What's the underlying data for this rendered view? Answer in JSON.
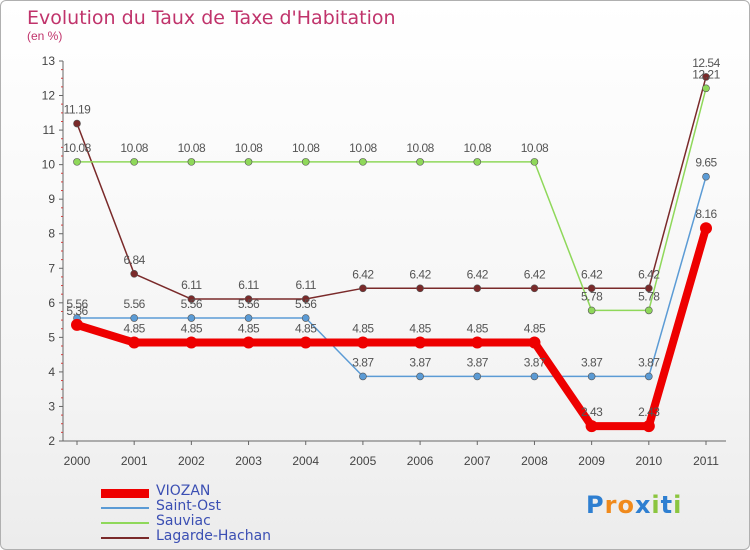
{
  "chart_data": {
    "type": "line",
    "title": "Evolution du Taux de Taxe d'Habitation",
    "subtitle": "(en %)",
    "x": [
      "2000",
      "2001",
      "2002",
      "2003",
      "2004",
      "2005",
      "2006",
      "2007",
      "2008",
      "2009",
      "2010",
      "2011"
    ],
    "ylim": [
      2,
      13
    ],
    "yticks": [
      "2",
      "3",
      "4",
      "5",
      "6",
      "7",
      "8",
      "9",
      "10",
      "11",
      "12",
      "13"
    ],
    "grid": false,
    "legend_position": "bottom-left",
    "series": [
      {
        "name": "VIOZAN",
        "color": "#ee0000",
        "values": [
          5.36,
          4.85,
          4.85,
          4.85,
          4.85,
          4.85,
          4.85,
          4.85,
          4.85,
          2.43,
          2.43,
          8.16
        ],
        "labels": [
          "5.36",
          "4.85",
          "4.85",
          "4.85",
          "4.85",
          "4.85",
          "4.85",
          "4.85",
          "4.85",
          "2.43",
          "2.43",
          "8.16"
        ]
      },
      {
        "name": "Saint-Ost",
        "color": "#5b9bd5",
        "values": [
          5.56,
          5.56,
          5.56,
          5.56,
          5.56,
          3.87,
          3.87,
          3.87,
          3.87,
          3.87,
          3.87,
          9.65
        ],
        "labels": [
          "5.56",
          "5.56",
          "5.56",
          "5.56",
          "5.56",
          "3.87",
          "3.87",
          "3.87",
          "3.87",
          "3.87",
          "3.87",
          "9.65"
        ]
      },
      {
        "name": "Sauviac",
        "color": "#8fd85a",
        "values": [
          10.08,
          10.08,
          10.08,
          10.08,
          10.08,
          10.08,
          10.08,
          10.08,
          10.08,
          5.78,
          5.78,
          12.21
        ],
        "labels": [
          "10.08",
          "10.08",
          "10.08",
          "10.08",
          "10.08",
          "10.08",
          "10.08",
          "10.08",
          "10.08",
          "5.78",
          "5.78",
          "12.21"
        ]
      },
      {
        "name": "Lagarde-Hachan",
        "color": "#7a2a2a",
        "values": [
          11.19,
          6.84,
          6.11,
          6.11,
          6.11,
          6.42,
          6.42,
          6.42,
          6.42,
          6.42,
          6.42,
          12.54
        ],
        "labels": [
          "11.19",
          "6.84",
          "6.11",
          "6.11",
          "6.11",
          "6.42",
          "6.42",
          "6.42",
          "6.42",
          "6.42",
          "6.42",
          "12.54"
        ]
      }
    ]
  },
  "logo": {
    "letters": [
      "P",
      "r",
      "o",
      "x",
      "i",
      "t",
      "i"
    ],
    "colors": [
      "#2e7fd1",
      "#f08a1c",
      "#f08a1c",
      "#2e7fd1",
      "#8bc53f",
      "#2e7fd1",
      "#8bc53f"
    ]
  }
}
